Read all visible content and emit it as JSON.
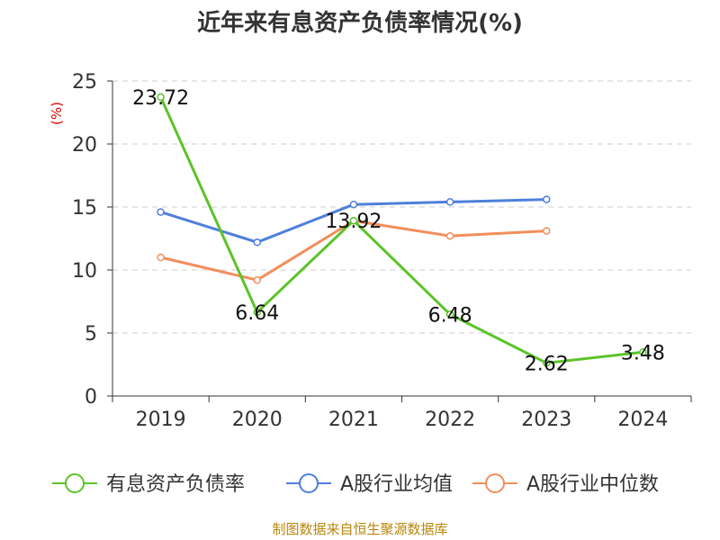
{
  "chart_data": {
    "type": "line",
    "title": "近年来有息资产负债率情况(%)",
    "y_unit": "(%)",
    "categories": [
      "2019",
      "2020",
      "2021",
      "2022",
      "2023",
      "2024"
    ],
    "yticks": [
      "0",
      "5",
      "10",
      "15",
      "20",
      "25"
    ],
    "ylim": [
      0,
      25
    ],
    "grid": true,
    "legend_position": "bottom",
    "series": [
      {
        "name": "有息资产负债率",
        "color": "#5cc329",
        "values": [
          23.72,
          6.64,
          13.92,
          6.48,
          2.62,
          3.48
        ],
        "labels": [
          "23.72",
          "6.64",
          "13.92",
          "6.48",
          "2.62",
          "3.48"
        ]
      },
      {
        "name": "A股行业均值",
        "color": "#4f7fdb",
        "values": [
          14.6,
          12.2,
          15.2,
          15.4,
          15.6,
          null
        ]
      },
      {
        "name": "A股行业中位数",
        "color": "#f28e5c",
        "values": [
          11.0,
          9.2,
          13.9,
          12.7,
          13.1,
          null
        ]
      }
    ],
    "source": "制图数据来自恒生聚源数据库"
  }
}
